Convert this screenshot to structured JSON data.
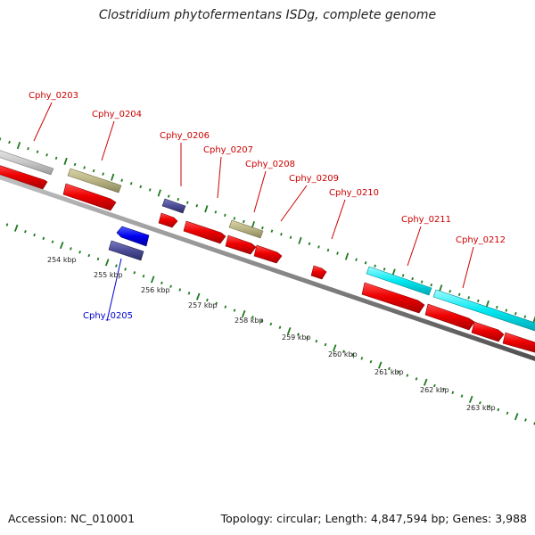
{
  "title": "Clostridium phytofermentans ISDg, complete genome",
  "footer": {
    "accession": "Accession: NC_010001",
    "summary": "Topology: circular; Length: 4,847,594 bp; Genes: 3,988"
  },
  "colors": {
    "backbone": "#8a8a8a",
    "cds_forward": "#ee0000",
    "gene_label_forward": "#cc0000",
    "gene_label_reverse": "#0000cc",
    "rna_grey": "#c8c8c8",
    "khaki": "#b9b483",
    "navy": "#4b4c96",
    "blue": "#0000ee",
    "cyan": "#00e8f0",
    "tick_green": "#1f7a1f"
  },
  "gene_labels": [
    {
      "text": "Cphy_0203",
      "strand": "forward"
    },
    {
      "text": "Cphy_0204",
      "strand": "forward"
    },
    {
      "text": "Cphy_0205",
      "strand": "reverse"
    },
    {
      "text": "Cphy_0206",
      "strand": "forward"
    },
    {
      "text": "Cphy_0207",
      "strand": "forward"
    },
    {
      "text": "Cphy_0208",
      "strand": "forward"
    },
    {
      "text": "Cphy_0209",
      "strand": "forward"
    },
    {
      "text": "Cphy_0210",
      "strand": "forward"
    },
    {
      "text": "Cphy_0211",
      "strand": "forward"
    },
    {
      "text": "Cphy_0212",
      "strand": "forward"
    }
  ],
  "kbp_ticks": [
    "254 kbp",
    "255 kbp",
    "256 kbp",
    "257 kbp",
    "258 kbp",
    "259 kbp",
    "260 kbp",
    "261 kbp",
    "262 kbp",
    "263 kbp"
  ]
}
